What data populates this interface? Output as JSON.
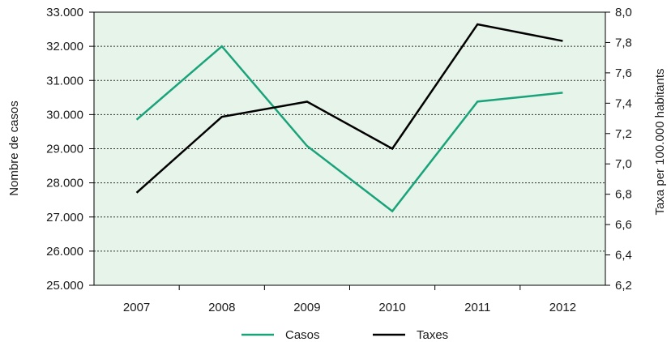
{
  "chart_data": {
    "type": "line",
    "categories": [
      "2007",
      "2008",
      "2009",
      "2010",
      "2011",
      "2012"
    ],
    "series": [
      {
        "name": "Casos",
        "axis": "left",
        "color": "#1aa37a",
        "values": [
          29850,
          32000,
          29080,
          27170,
          30380,
          30640
        ]
      },
      {
        "name": "Taxes",
        "axis": "right",
        "color": "#000000",
        "values": [
          6.81,
          7.31,
          7.41,
          7.1,
          7.92,
          7.81
        ]
      }
    ],
    "ylabel": "Nombre de casos",
    "y2label": "Taxa per 100.000 habitants",
    "ylim": [
      25000,
      33000
    ],
    "y2lim": [
      6.2,
      8.0
    ],
    "yticks": [
      "25.000",
      "26.000",
      "27.000",
      "28.000",
      "29.000",
      "30.000",
      "31.000",
      "32.000",
      "33.000"
    ],
    "y2ticks": [
      "6,2",
      "6,4",
      "6,6",
      "6,8",
      "7,0",
      "7,2",
      "7,4",
      "7,6",
      "7,8",
      "8,0"
    ],
    "plot_background": "#e6f4ea",
    "grid": true,
    "legend_position": "bottom"
  }
}
